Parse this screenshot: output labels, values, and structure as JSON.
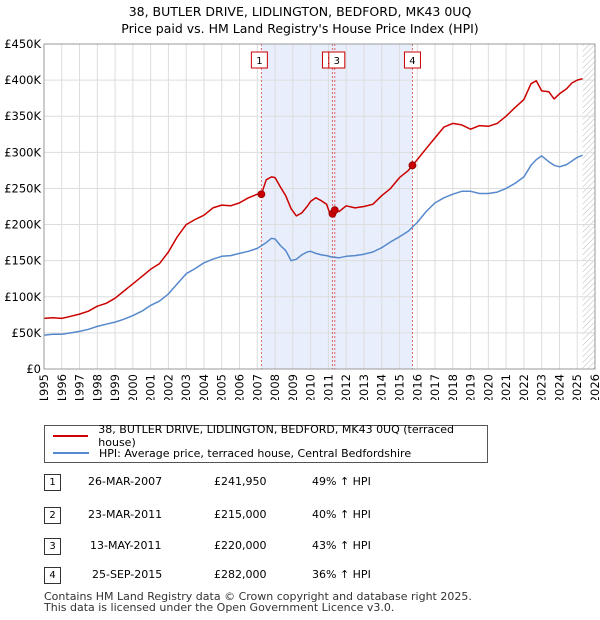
{
  "title_line1": "38, BUTLER DRIVE, LIDLINGTON, BEDFORD, MK43 0UQ",
  "title_line2": "Price paid vs. HM Land Registry's House Price Index (HPI)",
  "chart_data": {
    "type": "line",
    "title": "38, BUTLER DRIVE, LIDLINGTON, BEDFORD, MK43 0UQ — Price paid vs. HM Land Registry's House Price Index (HPI)",
    "xlabel": "",
    "ylabel": "",
    "xlim": [
      1995,
      2026
    ],
    "ylim": [
      0,
      450000
    ],
    "x_ticks": [
      1995,
      1996,
      1997,
      1998,
      1999,
      2000,
      2001,
      2002,
      2003,
      2004,
      2005,
      2006,
      2007,
      2008,
      2009,
      2010,
      2011,
      2012,
      2013,
      2014,
      2015,
      2016,
      2017,
      2018,
      2019,
      2020,
      2021,
      2022,
      2023,
      2024,
      2025,
      2026
    ],
    "y_ticks": [
      0,
      50000,
      100000,
      150000,
      200000,
      250000,
      300000,
      350000,
      400000,
      450000
    ],
    "y_tick_labels": [
      "£0",
      "£50K",
      "£100K",
      "£150K",
      "£200K",
      "£250K",
      "£300K",
      "£350K",
      "£400K",
      "£450K"
    ],
    "series": [
      {
        "name": "38, BUTLER DRIVE, LIDLINGTON, BEDFORD, MK43 0UQ (terraced house)",
        "color": "#cc0000",
        "x": [
          1995.0,
          1995.5,
          1996.0,
          1996.5,
          1997.0,
          1997.5,
          1998.0,
          1998.5,
          1999.0,
          1999.5,
          2000.0,
          2000.5,
          2001.0,
          2001.5,
          2002.0,
          2002.5,
          2003.0,
          2003.5,
          2004.0,
          2004.5,
          2005.0,
          2005.5,
          2006.0,
          2006.5,
          2007.0,
          2007.23,
          2007.5,
          2007.8,
          2008.0,
          2008.3,
          2008.6,
          2008.9,
          2009.2,
          2009.5,
          2009.8,
          2010.0,
          2010.3,
          2010.6,
          2010.9,
          2011.1,
          2011.23,
          2011.36,
          2011.6,
          2012.0,
          2012.5,
          2013.0,
          2013.5,
          2014.0,
          2014.5,
          2015.0,
          2015.5,
          2015.73,
          2016.0,
          2016.5,
          2017.0,
          2017.5,
          2018.0,
          2018.5,
          2019.0,
          2019.5,
          2020.0,
          2020.5,
          2021.0,
          2021.5,
          2022.0,
          2022.4,
          2022.7,
          2023.0,
          2023.4,
          2023.7,
          2024.0,
          2024.4,
          2024.7,
          2025.0,
          2025.3
        ],
        "values": [
          70000,
          71000,
          70000,
          73000,
          76000,
          80000,
          87000,
          91000,
          98000,
          108000,
          118000,
          128000,
          138000,
          146000,
          162000,
          183000,
          200000,
          207000,
          213000,
          223000,
          227000,
          226000,
          230000,
          237000,
          242000,
          241950,
          262000,
          266000,
          265000,
          252000,
          240000,
          222000,
          212000,
          216000,
          225000,
          232000,
          237000,
          233000,
          228000,
          214000,
          215000,
          220000,
          218000,
          226000,
          223000,
          225000,
          228000,
          240000,
          250000,
          265000,
          275000,
          282000,
          290000,
          305000,
          320000,
          335000,
          340000,
          338000,
          332000,
          337000,
          336000,
          340000,
          350000,
          362000,
          373000,
          395000,
          399000,
          385000,
          384000,
          374000,
          381000,
          388000,
          396000,
          400000,
          402000
        ]
      },
      {
        "name": "HPI: Average price, terraced house, Central Bedfordshire",
        "color": "#5588cc",
        "x": [
          1995.0,
          1995.5,
          1996.0,
          1996.5,
          1997.0,
          1997.5,
          1998.0,
          1998.5,
          1999.0,
          1999.5,
          2000.0,
          2000.5,
          2001.0,
          2001.5,
          2002.0,
          2002.5,
          2003.0,
          2003.5,
          2004.0,
          2004.5,
          2005.0,
          2005.5,
          2006.0,
          2006.5,
          2007.0,
          2007.5,
          2007.8,
          2008.0,
          2008.3,
          2008.6,
          2008.9,
          2009.2,
          2009.5,
          2009.8,
          2010.0,
          2010.3,
          2010.6,
          2010.9,
          2011.2,
          2011.6,
          2012.0,
          2012.5,
          2013.0,
          2013.5,
          2014.0,
          2014.5,
          2015.0,
          2015.5,
          2016.0,
          2016.5,
          2017.0,
          2017.5,
          2018.0,
          2018.5,
          2019.0,
          2019.5,
          2020.0,
          2020.5,
          2021.0,
          2021.5,
          2022.0,
          2022.4,
          2022.7,
          2023.0,
          2023.4,
          2023.7,
          2024.0,
          2024.4,
          2024.7,
          2025.0,
          2025.3
        ],
        "values": [
          47000,
          48000,
          48000,
          50000,
          52000,
          55000,
          59000,
          62000,
          65000,
          69000,
          74000,
          80000,
          88000,
          94000,
          104000,
          118000,
          132000,
          139000,
          147000,
          152000,
          156000,
          157000,
          160000,
          163000,
          167000,
          175000,
          181000,
          180000,
          171000,
          164000,
          150000,
          152000,
          158000,
          162000,
          163000,
          160000,
          158000,
          157000,
          155000,
          154000,
          156000,
          157000,
          159000,
          162000,
          168000,
          176000,
          183000,
          191000,
          203000,
          218000,
          230000,
          237000,
          242000,
          246000,
          246000,
          243000,
          243000,
          245000,
          250000,
          257000,
          266000,
          282000,
          290000,
          295000,
          287000,
          282000,
          280000,
          283000,
          288000,
          293000,
          296000
        ]
      }
    ],
    "sale_markers": [
      {
        "label": "1",
        "x": 2007.23,
        "y": 241950
      },
      {
        "label": "2",
        "x": 2011.23,
        "y": 215000
      },
      {
        "label": "3",
        "x": 2011.36,
        "y": 220000
      },
      {
        "label": "4",
        "x": 2015.73,
        "y": 282000
      }
    ],
    "shaded_ranges": [
      [
        2007.23,
        2015.73
      ]
    ],
    "future_hatch_from": 2025.3
  },
  "legend": {
    "property": "38, BUTLER DRIVE, LIDLINGTON, BEDFORD, MK43 0UQ (terraced house)",
    "hpi": "HPI: Average price, terraced house, Central Bedfordshire",
    "property_color": "#cc0000",
    "hpi_color": "#5588cc"
  },
  "transactions": [
    {
      "num": "1",
      "date": "26-MAR-2007",
      "price": "£241,950",
      "hpi": "49% ↑ HPI"
    },
    {
      "num": "2",
      "date": "23-MAR-2011",
      "price": "£215,000",
      "hpi": "40% ↑ HPI"
    },
    {
      "num": "3",
      "date": "13-MAY-2011",
      "price": "£220,000",
      "hpi": "43% ↑ HPI"
    },
    {
      "num": "4",
      "date": "25-SEP-2015",
      "price": "£282,000",
      "hpi": "36% ↑ HPI"
    }
  ],
  "footer": {
    "line1": "Contains HM Land Registry data © Crown copyright and database right 2025.",
    "line2": "This data is licensed under the Open Government Licence v3.0."
  }
}
